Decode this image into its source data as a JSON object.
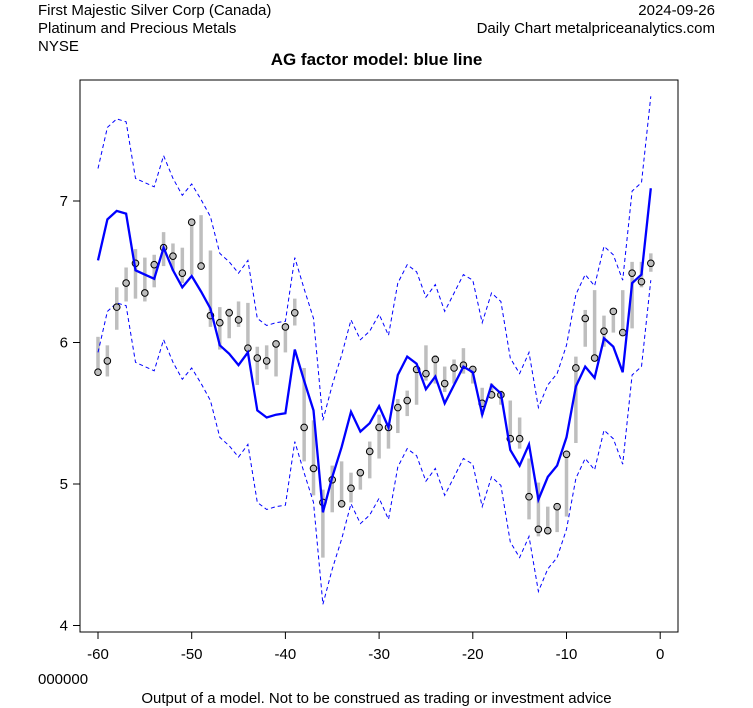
{
  "header": {
    "company": "First Majestic Silver Corp (Canada)",
    "sector": "Platinum and Precious Metals",
    "exchange": "NYSE",
    "date": "2024-09-26",
    "source": "Daily Chart metalpriceanalytics.com"
  },
  "footer": {
    "code": "000000",
    "disclaimer": "Output of a model. Not to be construed as trading or investment advice"
  },
  "colors": {
    "model": "#0000ff",
    "band": "#0000ff",
    "range": "#bebebe",
    "point": "#bebebe"
  },
  "chart_data": {
    "type": "line",
    "title": "AG factor model: blue line",
    "xlabel": "",
    "ylabel": "",
    "xlim": [
      -62,
      1.5
    ],
    "ylim": [
      4,
      7.9
    ],
    "xticks": [
      -60,
      -50,
      -40,
      -30,
      -20,
      -10,
      0
    ],
    "yticks": [
      4,
      5,
      6,
      7
    ],
    "x": [
      -60,
      -59,
      -58,
      -57,
      -56,
      -55,
      -54,
      -53,
      -52,
      -51,
      -50,
      -49,
      -48,
      -47,
      -46,
      -45,
      -44,
      -43,
      -42,
      -41,
      -40,
      -39,
      -38,
      -37,
      -36,
      -35,
      -34,
      -33,
      -32,
      -31,
      -30,
      -29,
      -28,
      -27,
      -26,
      -25,
      -24,
      -23,
      -22,
      -21,
      -20,
      -19,
      -18,
      -17,
      -16,
      -15,
      -14,
      -13,
      -12,
      -11,
      -10,
      -9,
      -8,
      -7,
      -6,
      -5,
      -4,
      -3,
      -2,
      -1
    ],
    "series": [
      {
        "name": "model",
        "values": [
          6.58,
          6.87,
          6.93,
          6.91,
          6.51,
          6.48,
          6.45,
          6.67,
          6.51,
          6.39,
          6.47,
          6.36,
          6.24,
          5.98,
          5.92,
          5.84,
          5.93,
          5.52,
          5.47,
          5.49,
          5.5,
          5.95,
          5.73,
          5.52,
          4.8,
          5.05,
          5.26,
          5.51,
          5.37,
          5.43,
          5.55,
          5.4,
          5.77,
          5.9,
          5.85,
          5.67,
          5.76,
          5.57,
          5.7,
          5.83,
          5.79,
          5.49,
          5.7,
          5.64,
          5.24,
          5.13,
          5.28,
          4.89,
          5.05,
          5.13,
          5.33,
          5.69,
          5.83,
          5.75,
          6.03,
          5.97,
          5.79,
          6.42,
          6.48,
          7.09
        ]
      },
      {
        "name": "close",
        "values": [
          5.79,
          5.87,
          6.25,
          6.42,
          6.56,
          6.35,
          6.55,
          6.67,
          6.61,
          6.49,
          6.85,
          6.54,
          6.19,
          6.14,
          6.21,
          6.16,
          5.96,
          5.89,
          5.87,
          5.99,
          6.11,
          6.21,
          5.4,
          5.11,
          4.87,
          5.03,
          4.86,
          4.97,
          5.08,
          5.23,
          5.4,
          5.4,
          5.54,
          5.59,
          5.81,
          5.78,
          5.88,
          5.71,
          5.82,
          5.84,
          5.81,
          5.57,
          5.63,
          5.63,
          5.32,
          5.32,
          4.91,
          4.68,
          4.67,
          4.84,
          5.21,
          5.82,
          6.17,
          5.89,
          6.08,
          6.22,
          6.07,
          6.49,
          6.43,
          6.56
        ]
      },
      {
        "name": "high",
        "values": [
          6.04,
          5.98,
          6.39,
          6.53,
          6.66,
          6.6,
          6.62,
          6.78,
          6.7,
          6.67,
          6.85,
          6.9,
          6.65,
          6.25,
          6.24,
          6.29,
          6.28,
          5.97,
          5.98,
          5.99,
          6.11,
          6.31,
          5.82,
          5.45,
          4.96,
          5.13,
          5.16,
          5.08,
          5.08,
          5.3,
          5.49,
          5.4,
          5.6,
          5.66,
          5.81,
          5.98,
          5.91,
          5.83,
          5.88,
          5.96,
          5.83,
          5.68,
          5.71,
          5.66,
          5.59,
          5.47,
          5.18,
          5.01,
          4.84,
          4.84,
          5.21,
          5.9,
          6.23,
          6.37,
          6.19,
          6.22,
          6.37,
          6.57,
          6.57,
          6.63
        ]
      },
      {
        "name": "low",
        "values": [
          5.79,
          5.76,
          6.09,
          6.29,
          6.31,
          6.29,
          6.39,
          6.54,
          6.51,
          6.42,
          6.48,
          6.54,
          6.11,
          5.95,
          6.03,
          6.11,
          5.96,
          5.7,
          5.81,
          5.76,
          5.93,
          6.12,
          5.16,
          4.92,
          4.48,
          4.8,
          4.86,
          4.87,
          4.96,
          5.04,
          5.18,
          5.25,
          5.36,
          5.48,
          5.56,
          5.73,
          5.71,
          5.65,
          5.71,
          5.78,
          5.71,
          5.49,
          5.61,
          5.56,
          5.32,
          5.25,
          4.75,
          4.63,
          4.65,
          4.66,
          4.77,
          5.29,
          5.97,
          5.89,
          5.97,
          6.07,
          6.07,
          6.1,
          6.39,
          6.5
        ]
      }
    ],
    "band_halfwidth": 0.65,
    "band_style": "dashed"
  }
}
